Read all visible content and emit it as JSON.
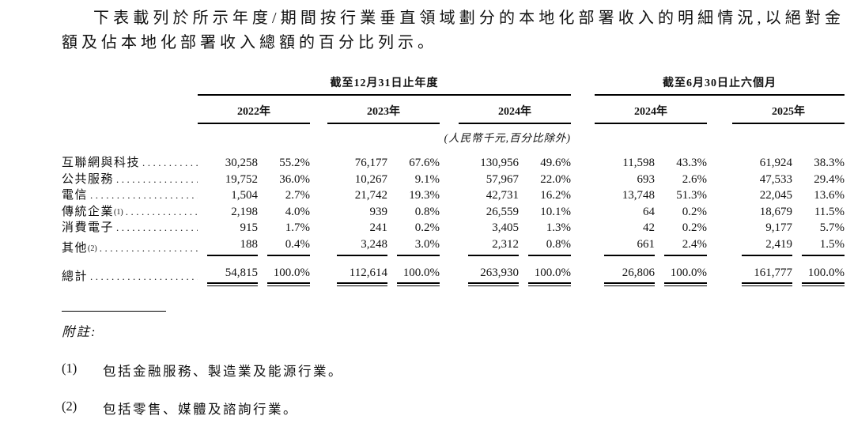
{
  "intro": "下表載列於所示年度/期間按行業垂直領域劃分的本地化部署收入的明細情況,以絕對金額及佔本地化部署收入總額的百分比列示。",
  "table": {
    "group_headers": [
      "截至12月31日止年度",
      "截至6月30日止六個月"
    ],
    "year_headers": [
      "2022年",
      "2023年",
      "2024年",
      "2024年",
      "2025年"
    ],
    "unit_note": "(人民幣千元,百分比除外)",
    "rows": [
      {
        "label": "互聯網與科技",
        "sup": "",
        "values": [
          "30,258",
          "55.2%",
          "76,177",
          "67.6%",
          "130,956",
          "49.6%",
          "11,598",
          "43.3%",
          "61,924",
          "38.3%"
        ]
      },
      {
        "label": "公共服務",
        "sup": "",
        "values": [
          "19,752",
          "36.0%",
          "10,267",
          "9.1%",
          "57,967",
          "22.0%",
          "693",
          "2.6%",
          "47,533",
          "29.4%"
        ]
      },
      {
        "label": "電信",
        "sup": "",
        "values": [
          "1,504",
          "2.7%",
          "21,742",
          "19.3%",
          "42,731",
          "16.2%",
          "13,748",
          "51.3%",
          "22,045",
          "13.6%"
        ]
      },
      {
        "label": "傳統企業",
        "sup": "(1)",
        "values": [
          "2,198",
          "4.0%",
          "939",
          "0.8%",
          "26,559",
          "10.1%",
          "64",
          "0.2%",
          "18,679",
          "11.5%"
        ]
      },
      {
        "label": "消費電子",
        "sup": "",
        "values": [
          "915",
          "1.7%",
          "241",
          "0.2%",
          "3,405",
          "1.3%",
          "42",
          "0.2%",
          "9,177",
          "5.7%"
        ]
      },
      {
        "label": "其他",
        "sup": "(2)",
        "values": [
          "188",
          "0.4%",
          "3,248",
          "3.0%",
          "2,312",
          "0.8%",
          "661",
          "2.4%",
          "2,419",
          "1.5%"
        ]
      }
    ],
    "total": {
      "label": "總計",
      "values": [
        "54,815",
        "100.0%",
        "112,614",
        "100.0%",
        "263,930",
        "100.0%",
        "26,806",
        "100.0%",
        "161,777",
        "100.0%"
      ]
    }
  },
  "notes": {
    "title": "附註:",
    "items": [
      {
        "num": "(1)",
        "text": "包括金融服務、製造業及能源行業。"
      },
      {
        "num": "(2)",
        "text": "包括零售、媒體及諮詢行業。"
      }
    ]
  }
}
